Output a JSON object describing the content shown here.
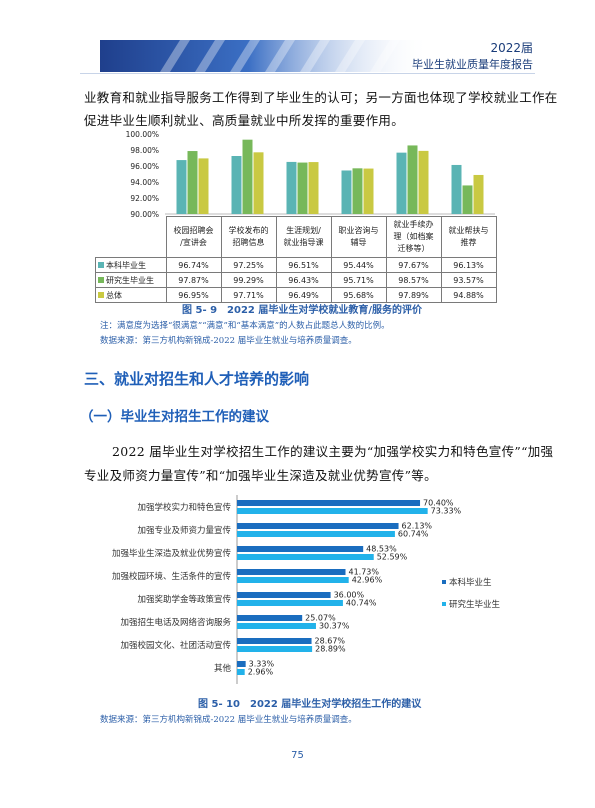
{
  "header": {
    "year": "2022届",
    "title": "毕业生就业质量年度报告"
  },
  "paragraph1": {
    "line1": "业教育和就业指导服务工作得到了毕业生的认可；另一方面也体现了学校就业工作在",
    "line2": "促进毕业生顺利就业、高质量就业中所发挥的重要作用。"
  },
  "figure1": {
    "caption": "图 5- 9　2022 届毕业生对学校就业教育/服务的评价",
    "note": "注：满意度为选择“很满意”“满意”和“基本满意”的人数占此题总人数的比例。",
    "source": "数据来源：第三方机构新锦成-2022 届毕业生就业与培养质量调查。"
  },
  "section": {
    "heading": "三、就业对招生和人才培养的影响"
  },
  "subsection": {
    "heading": "（一）毕业生对招生工作的建议"
  },
  "paragraph2": {
    "line1": "2022 届毕业生对学校招生工作的建议主要为“加强学校实力和特色宣传”“加强",
    "line2": "专业及师资力量宣传”和“加强毕业生深造及就业优势宣传”等。"
  },
  "figure2": {
    "caption": "图 5- 10　2022 届毕业生对学校招生工作的建议",
    "source": "数据来源：第三方机构新锦成-2022 届毕业生就业与培养质量调查。"
  },
  "page_number": "75",
  "chart_data": [
    {
      "type": "bar",
      "categories": [
        "校园招聘会/宣讲会",
        "学校发布的招聘信息",
        "生涯规划/就业指导课",
        "职业咨询与辅导",
        "就业手续办理（如档案迁移等）",
        "就业帮扶与推荐"
      ],
      "category_lines": [
        [
          "校园招聘会",
          "/宣讲会"
        ],
        [
          "学校发布的",
          "招聘信息"
        ],
        [
          "生涯规划/",
          "就业指导课"
        ],
        [
          "职业咨询与",
          "辅导"
        ],
        [
          "就业手续办",
          "理（如档案",
          "迁移等）"
        ],
        [
          "就业帮扶与",
          "推荐"
        ]
      ],
      "series": [
        {
          "name": "本科毕业生",
          "color": "#5ab4b4",
          "values": [
            96.74,
            97.25,
            96.51,
            95.44,
            97.67,
            96.13
          ],
          "labels": [
            "96.74%",
            "97.25%",
            "96.51%",
            "95.44%",
            "97.67%",
            "96.13%"
          ]
        },
        {
          "name": "研究生毕业生",
          "color": "#77b85a",
          "values": [
            97.87,
            99.29,
            96.43,
            95.71,
            98.57,
            93.57
          ],
          "labels": [
            "97.87%",
            "99.29%",
            "96.43%",
            "95.71%",
            "98.57%",
            "93.57%"
          ]
        },
        {
          "name": "总体",
          "color": "#c9c942",
          "values": [
            96.95,
            97.71,
            96.49,
            95.68,
            97.89,
            94.88
          ],
          "labels": [
            "96.95%",
            "97.71%",
            "96.49%",
            "95.68%",
            "97.89%",
            "94.88%"
          ]
        }
      ],
      "yticks": [
        "100.00%",
        "98.00%",
        "96.00%",
        "94.00%",
        "92.00%",
        "90.00%"
      ],
      "ylim": [
        90,
        100
      ],
      "legend": "table"
    },
    {
      "type": "bar",
      "orientation": "horizontal",
      "categories": [
        "加强学校实力和特色宣传",
        "加强专业及师资力量宣传",
        "加强毕业生深造及就业优势宣传",
        "加强校园环境、生活条件的宣传",
        "加强奖助学金等政策宣传",
        "加强招生电话及网络咨询服务",
        "加强校园文化、社团活动宣传",
        "其他"
      ],
      "series": [
        {
          "name": "本科毕业生",
          "color": "#1a6dbf",
          "values": [
            70.4,
            62.13,
            48.53,
            41.73,
            36.0,
            25.07,
            28.67,
            3.33
          ],
          "labels": [
            "70.40%",
            "62.13%",
            "48.53%",
            "41.73%",
            "36.00%",
            "25.07%",
            "28.67%",
            "3.33%"
          ]
        },
        {
          "name": "研究生毕业生",
          "color": "#22b2ea",
          "values": [
            73.33,
            60.74,
            52.59,
            42.96,
            40.74,
            30.37,
            28.89,
            2.96
          ],
          "labels": [
            "73.33%",
            "60.74%",
            "52.59%",
            "42.96%",
            "40.74%",
            "30.37%",
            "28.89%",
            "2.96%"
          ]
        }
      ],
      "legend": "right"
    }
  ]
}
